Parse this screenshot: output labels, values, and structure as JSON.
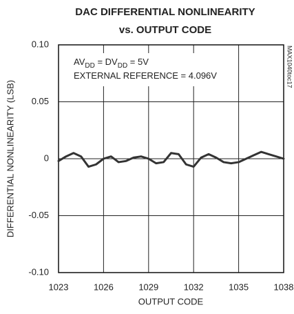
{
  "chart_data": {
    "type": "line",
    "title": [
      "DAC DIFFERENTIAL NONLINEARITY",
      "vs. OUTPUT CODE"
    ],
    "annotation": [
      [
        "AV",
        "DD",
        " = DV",
        "DD",
        " = 5V"
      ],
      [
        "EXTERNAL REFERENCE = 4.096V"
      ]
    ],
    "side_label": "MAX1040toc17",
    "xlabel": "OUTPUT CODE",
    "ylabel": "DIFFERENTIAL NONLINEARITY (LSB)",
    "x": [
      1023,
      1023.5,
      1024,
      1024.5,
      1025,
      1025.5,
      1026,
      1026.5,
      1027,
      1027.5,
      1028,
      1028.5,
      1029,
      1029.5,
      1030,
      1030.5,
      1031,
      1031.5,
      1032,
      1032.5,
      1033,
      1033.5,
      1034,
      1034.5,
      1035,
      1035.5,
      1036,
      1036.5,
      1037,
      1037.5,
      1038
    ],
    "values": [
      -0.002,
      0.002,
      0.005,
      0.002,
      -0.007,
      -0.005,
      0.0,
      0.002,
      -0.003,
      -0.002,
      0.001,
      0.002,
      0.0,
      -0.004,
      -0.003,
      0.005,
      0.004,
      -0.005,
      -0.007,
      0.001,
      0.004,
      0.001,
      -0.003,
      -0.004,
      -0.003,
      0.0,
      0.003,
      0.006,
      0.004,
      0.002,
      0.0
    ],
    "color": "#333333",
    "xlim": [
      1023,
      1038
    ],
    "xticks": [
      1023,
      1026,
      1029,
      1032,
      1035,
      1038
    ],
    "ylim": [
      -0.1,
      0.1
    ],
    "yticks": [
      {
        "value": -0.1,
        "label": "-0.10"
      },
      -0.05,
      0,
      0.05,
      {
        "value": 0.1,
        "label": "0.10"
      }
    ],
    "grid": true
  }
}
